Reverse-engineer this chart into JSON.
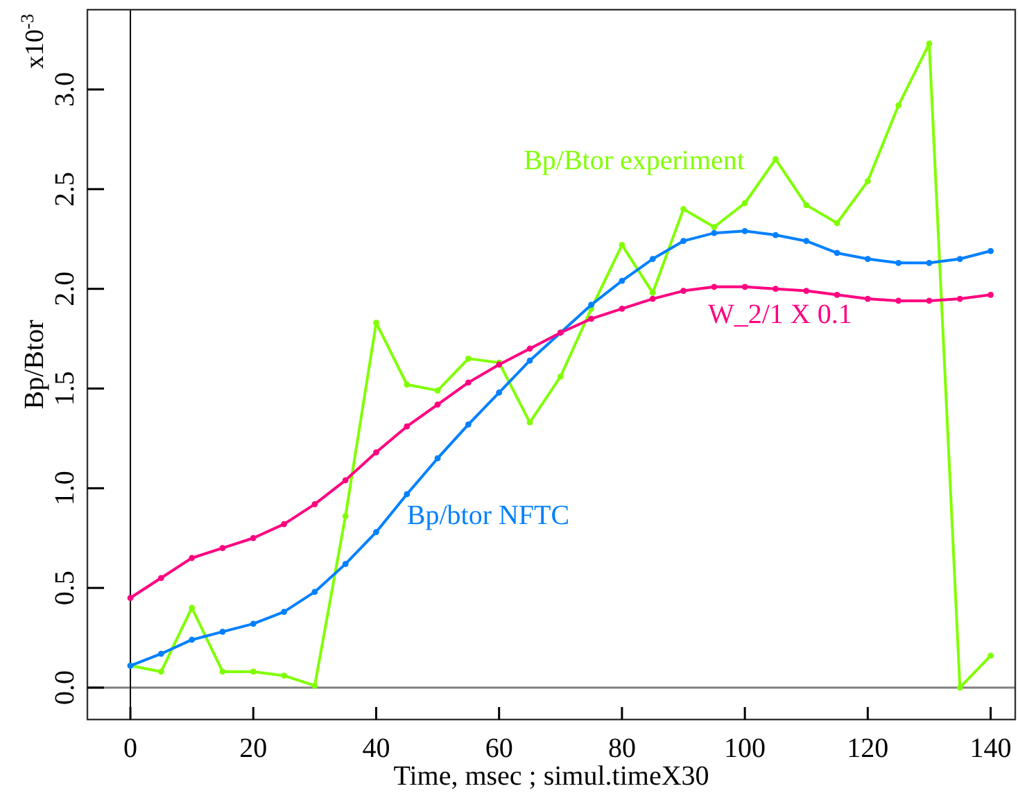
{
  "chart_data": {
    "type": "line",
    "xlabel": "Time, msec ; simul.timeX30",
    "ylabel": "Bp/Btor",
    "annotations": [
      "x10$^{-3}$"
    ],
    "x": [
      0,
      5,
      10,
      15,
      20,
      25,
      30,
      35,
      40,
      45,
      50,
      55,
      60,
      65,
      70,
      75,
      80,
      85,
      90,
      95,
      100,
      105,
      110,
      115,
      120,
      125,
      130,
      135,
      140
    ],
    "series": [
      {
        "name": "Bp/Btor experiment",
        "color": "#80ff00",
        "values": [
          0.11,
          0.08,
          0.4,
          0.08,
          0.08,
          0.06,
          0.01,
          0.86,
          1.83,
          1.52,
          1.49,
          1.65,
          1.63,
          1.33,
          1.56,
          1.9,
          2.22,
          1.98,
          2.4,
          2.31,
          2.43,
          2.65,
          2.42,
          2.33,
          2.54,
          2.92,
          3.23,
          0.0,
          0.16
        ]
      },
      {
        "name": "Bp/btor NFTC",
        "color": "#0080ff",
        "values": [
          0.11,
          0.17,
          0.24,
          0.28,
          0.32,
          0.38,
          0.48,
          0.62,
          0.78,
          0.97,
          1.15,
          1.32,
          1.48,
          1.64,
          1.78,
          1.92,
          2.04,
          2.15,
          2.24,
          2.28,
          2.29,
          2.27,
          2.24,
          2.18,
          2.15,
          2.13,
          2.13,
          2.15,
          2.19
        ]
      },
      {
        "name": "W_2/1 X 0.1",
        "color": "#ff0080",
        "values": [
          0.45,
          0.55,
          0.65,
          0.7,
          0.75,
          0.82,
          0.92,
          1.04,
          1.18,
          1.31,
          1.42,
          1.53,
          1.62,
          1.7,
          1.78,
          1.85,
          1.9,
          1.95,
          1.99,
          2.01,
          2.01,
          2.0,
          1.99,
          1.97,
          1.95,
          1.94,
          1.94,
          1.95,
          1.97
        ]
      }
    ],
    "xlim": [
      -7,
      144
    ],
    "xticks": [
      0,
      20,
      40,
      60,
      80,
      100,
      120,
      140
    ],
    "ylim": [
      -0.16,
      3.4
    ],
    "yticks": [
      {
        "value": 0,
        "label": "0.0"
      },
      {
        "value": 0.5,
        "label": "0.5"
      },
      {
        "value": 1,
        "label": "1.0"
      },
      {
        "value": 1.5,
        "label": "1.5"
      },
      {
        "value": 2,
        "label": "2.0"
      },
      {
        "value": 2.5,
        "label": "2.5"
      },
      {
        "value": 3,
        "label": "3.0"
      }
    ],
    "ref_lines": [
      {
        "axis": "y",
        "value": 0,
        "color": "#808080"
      },
      {
        "axis": "x",
        "value": 0,
        "color": "#000000"
      }
    ],
    "marker": "circle",
    "line_style": "solid",
    "grid": false,
    "legend": false
  }
}
